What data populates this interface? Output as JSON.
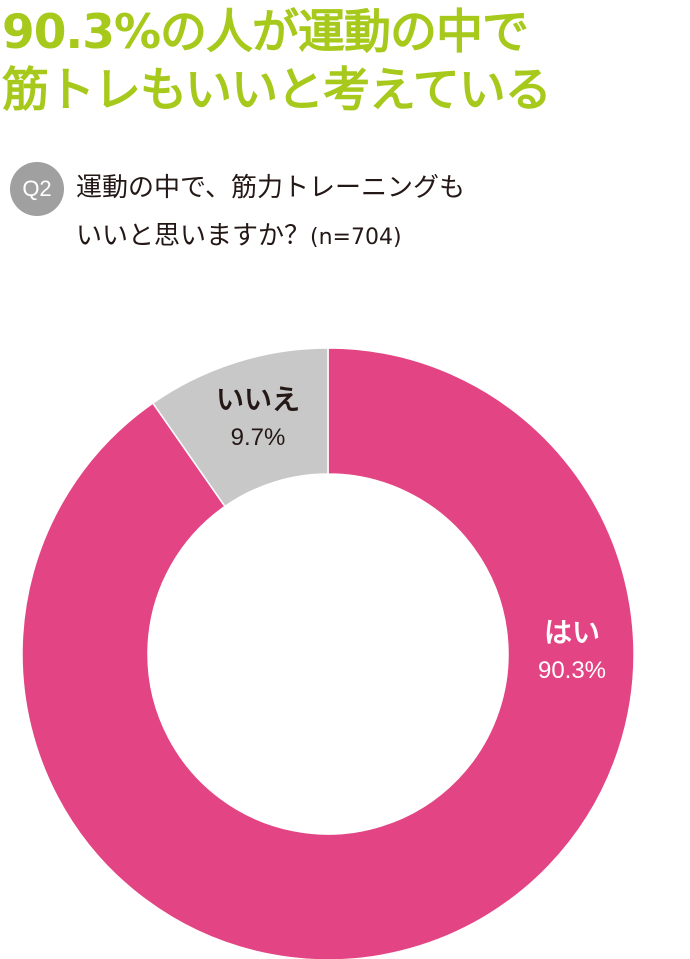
{
  "headline": {
    "line1": "90.3%の人が運動の中で",
    "line2": "筋トレもいいと考えている"
  },
  "question": {
    "badge": "Q2",
    "line1": "運動の中で、筋力トレーニングも",
    "line2": "いいと思いますか？",
    "sample": "(n=704)"
  },
  "colors": {
    "headline": "#a6c91c",
    "yes": "#e34483",
    "no": "#c8c8c8"
  },
  "chart_data": {
    "type": "pie",
    "donut": true,
    "slices": [
      {
        "label": "はい",
        "value": 90.3,
        "value_label": "90.3%",
        "color": "#e34483"
      },
      {
        "label": "いいえ",
        "value": 9.7,
        "value_label": "9.7%",
        "color": "#c8c8c8"
      }
    ]
  }
}
